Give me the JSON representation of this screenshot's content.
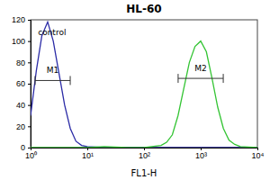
{
  "chart_data": {
    "type": "line",
    "title": "HL-60",
    "xlabel": "FL1-H",
    "log": "x",
    "x": [
      1,
      1.26,
      1.58,
      2,
      2.51,
      3.16,
      3.98,
      5.01,
      6.31,
      7.94,
      10,
      20,
      50,
      100,
      200,
      251,
      316,
      398,
      501,
      631,
      794,
      1000,
      1259,
      1585,
      1995,
      2512,
      3162,
      3981,
      5012,
      10000
    ],
    "series": [
      {
        "color": "#2b2ba6",
        "values": [
          30,
          72,
          105,
          118,
          100,
          70,
          40,
          18,
          6,
          2,
          1,
          0,
          0,
          0,
          0,
          0,
          0,
          0,
          0,
          0,
          0,
          0,
          0,
          0,
          0,
          0,
          0,
          0,
          0,
          0
        ]
      },
      {
        "color": "#33c433",
        "values": [
          0,
          0,
          0,
          0,
          0,
          0,
          0,
          0,
          0,
          0,
          0,
          1,
          0,
          0,
          2,
          5,
          12,
          30,
          55,
          80,
          95,
          100,
          90,
          65,
          38,
          18,
          7,
          3,
          1,
          0
        ]
      }
    ],
    "xlim": [
      1,
      10000
    ],
    "xticks": [
      {
        "value": 1,
        "label": "10⁰"
      },
      {
        "value": 10,
        "label": "10¹"
      },
      {
        "value": 100,
        "label": "10²"
      },
      {
        "value": 1000,
        "label": "10³"
      },
      {
        "value": 10000,
        "label": "10⁴"
      }
    ],
    "ylim": [
      0,
      120
    ],
    "yticks": [
      0,
      20,
      40,
      60,
      80,
      100,
      120
    ],
    "markers": [
      {
        "label": "M1",
        "x": [
          1.2,
          5
        ],
        "y": 63
      },
      {
        "label": "M2",
        "x": [
          400,
          2500
        ],
        "y": 65
      }
    ],
    "annotations": [
      {
        "text": "control",
        "x": 1.35,
        "y": 106
      }
    ]
  }
}
